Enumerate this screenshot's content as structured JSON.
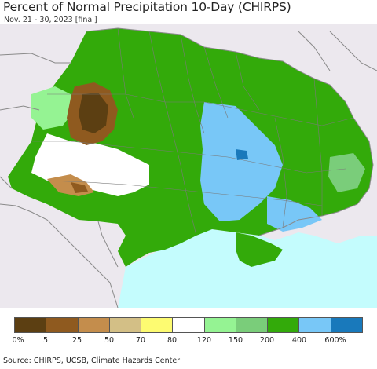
{
  "header": {
    "title": "Percent of Normal Precipitation 10-Day (CHIRPS)",
    "subtitle": "Nov. 21 - 30, 2023 [final]"
  },
  "map": {
    "region": "Ukraine",
    "colors": {
      "land_background": "#ece8ee",
      "sea": "#c4fcfd",
      "border": "#8a8a8a",
      "oblast_line": "#7a7a7a"
    }
  },
  "legend": {
    "swatches": [
      {
        "color": "#5c3f12"
      },
      {
        "color": "#8f5a1f"
      },
      {
        "color": "#c48d4c"
      },
      {
        "color": "#d3bf86"
      },
      {
        "color": "#fdfb71"
      },
      {
        "color": "#ffffff"
      },
      {
        "color": "#95f393"
      },
      {
        "color": "#7acd7a"
      },
      {
        "color": "#33aa0a"
      },
      {
        "color": "#78c7f7"
      },
      {
        "color": "#1979bb"
      }
    ],
    "labels": [
      "0%",
      "5",
      "25",
      "50",
      "70",
      "80",
      "120",
      "150",
      "200",
      "400",
      "600%"
    ]
  },
  "footer": {
    "source": "Source: CHIRPS, UCSB, Climate Hazards Center"
  }
}
